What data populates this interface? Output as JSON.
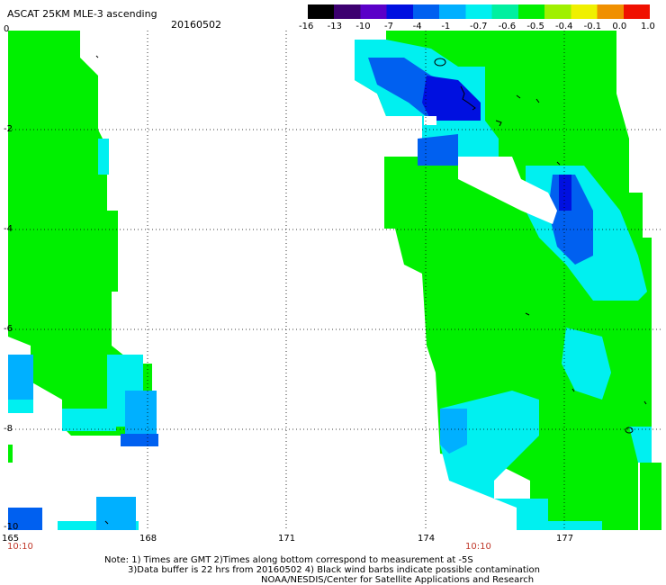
{
  "header": {
    "title": "ASCAT 25KM MLE-3 ascending",
    "date": "20160502"
  },
  "legend": {
    "ticks": [
      "-16",
      "-13",
      "-10",
      "-7",
      "-4",
      "-1",
      "-0.7",
      "-0.6",
      "-0.5",
      "-0.4",
      "-0.1",
      "0.0",
      "1.0"
    ],
    "colors": [
      "#000000",
      "#3c0070",
      "#5a00c8",
      "#0010e0",
      "#0060f0",
      "#00b0ff",
      "#00f0f0",
      "#00f0a0",
      "#00f000",
      "#a0f000",
      "#f0f000",
      "#f09000",
      "#f01000"
    ]
  },
  "axes": {
    "lat_labels": [
      "0",
      "-2",
      "-4",
      "-6",
      "-8",
      "-10"
    ],
    "lon_labels": [
      "165",
      "168",
      "171",
      "174",
      "177"
    ],
    "time_labels": [
      "10:10",
      "10:10"
    ]
  },
  "notes": {
    "line1": "Note: 1) Times are GMT 2)Times along bottom correspond to measurement at -5S",
    "line2": "3)Data buffer is 22 hrs from 20160502 4) Black wind barbs indicate possible contamination",
    "line3": "NOAA/NESDIS/Center for Satellite Applications and Research"
  },
  "colors": {
    "green": "#00f000",
    "cyan": "#00f0f0",
    "light_blue": "#00b0ff",
    "blue": "#0060f0",
    "deep_blue": "#0010e0"
  }
}
